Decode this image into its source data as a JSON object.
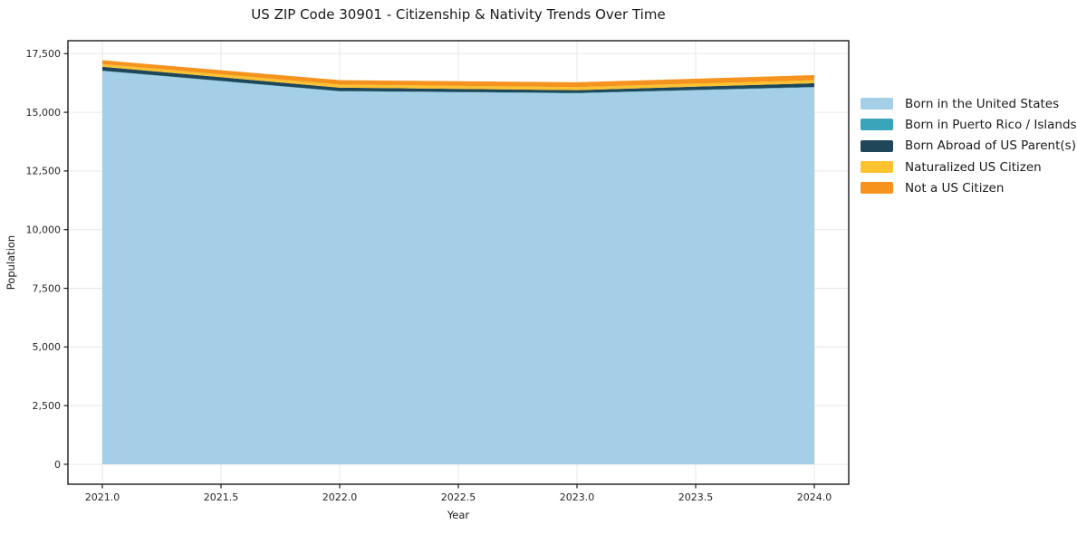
{
  "chart_data": {
    "type": "area",
    "stacked": true,
    "title": "US ZIP Code 30901 - Citizenship & Nativity Trends Over Time",
    "xlabel": "Year",
    "ylabel": "Population",
    "x": [
      2021,
      2022,
      2023,
      2024
    ],
    "series": [
      {
        "name": "Born in the United States",
        "color": "#A5CFE6",
        "values": [
          16760,
          15890,
          15810,
          16065
        ]
      },
      {
        "name": "Born in Puerto Rico / Islands",
        "color": "#3AA4BA",
        "values": [
          15,
          15,
          15,
          15
        ]
      },
      {
        "name": "Born Abroad of US Parent(s)",
        "color": "#1F4659",
        "values": [
          165,
          145,
          120,
          160
        ]
      },
      {
        "name": "Naturalized US Citizen",
        "color": "#FCC230",
        "values": [
          115,
          130,
          130,
          130
        ]
      },
      {
        "name": "Not a US Citizen",
        "color": "#F6921E",
        "values": [
          165,
          190,
          205,
          215
        ]
      }
    ],
    "xlim": [
      2020.855,
      2024.145
    ],
    "ylim": [
      -850,
      18050
    ],
    "xticks": {
      "values": [
        2021.0,
        2021.5,
        2022.0,
        2022.5,
        2023.0,
        2023.5,
        2024.0
      ],
      "labels": [
        "2021.0",
        "2021.5",
        "2022.0",
        "2022.5",
        "2023.0",
        "2023.5",
        "2024.0"
      ]
    },
    "yticks": {
      "values": [
        0,
        2500,
        5000,
        7500,
        10000,
        12500,
        15000,
        17500
      ],
      "labels": [
        "0",
        "2,500",
        "5,000",
        "7,500",
        "10,000",
        "12,500",
        "15,000",
        "17,500"
      ]
    },
    "grid": true,
    "grid_color": "#e7e7e7",
    "axis_color": "#1a1a1a",
    "legend_position": "right"
  }
}
